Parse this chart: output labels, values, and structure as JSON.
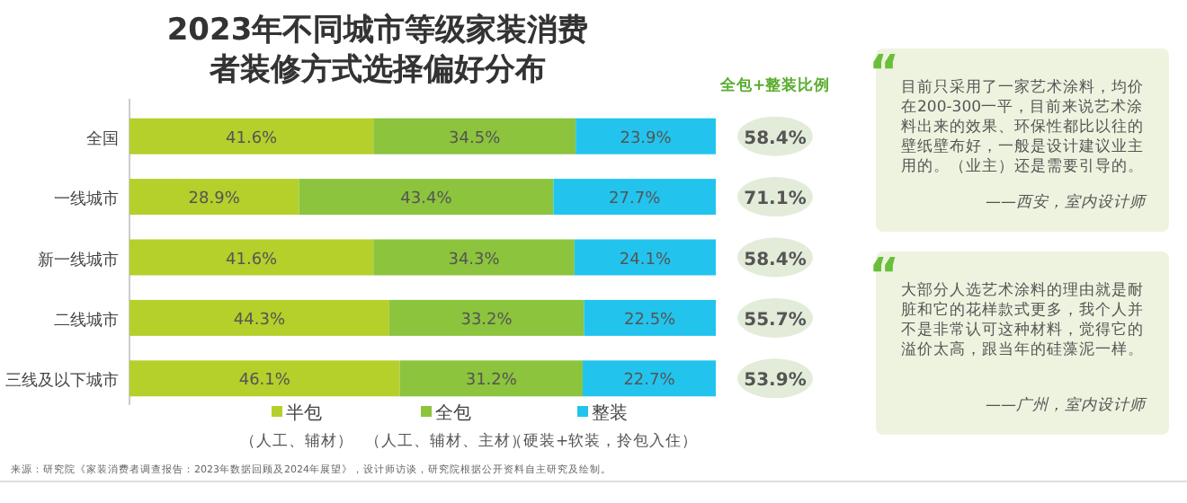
{
  "chart_data": [
    {
      "type": "bar",
      "orientation": "horizontal",
      "stacked": true,
      "legend": "bottom",
      "grid": false,
      "title": "2023年不同城市等级家装消费者装修方式选择偏好分布",
      "categories": [
        "全国",
        "一线城市",
        "新一线城市",
        "二线城市",
        "三线及以下城市"
      ],
      "series": [
        {
          "name": "半包",
          "color": "#b5cf2b",
          "values": [
            41.6,
            28.9,
            41.6,
            44.3,
            46.1
          ],
          "value_labels": [
            "41.6%",
            "28.9%",
            "41.6%",
            "44.3%",
            "46.1%"
          ]
        },
        {
          "name": "全包",
          "color": "#8cc43d",
          "values": [
            34.5,
            43.4,
            34.3,
            33.2,
            31.2
          ],
          "value_labels": [
            "34.5%",
            "43.4%",
            "34.3%",
            "33.2%",
            "31.2%"
          ]
        },
        {
          "name": "整装",
          "color": "#22c4ee",
          "values": [
            23.9,
            27.7,
            24.1,
            22.5,
            22.7
          ],
          "value_labels": [
            "23.9%",
            "27.7%",
            "24.1%",
            "22.5%",
            "22.7%"
          ]
        }
      ],
      "annotations": [
        "全包+整装比例",
        "58.4%",
        "71.1%",
        "58.4%",
        "55.7%",
        "53.9%",
        "（人工、辅材）",
        "（人工、辅材、主材）",
        "（硬装+软装，拎包入住）",
        "来源：研究院《家装消费者调查报告：2023年数据回顾及2024年展望》，设计师访谈，研究院根据公开资料自主研究及绘制。"
      ]
    },
    {
      "type": "other",
      "annotations": [
        "“",
        "目前只采用了一家艺术涂料，均价在200-300一平，目前来说艺术涂料出来的效果、环保性都比以往的壁纸壁布好，一般是设计建议业主用的。（业主）还是需要引导的。",
        "——西安，室内设计师",
        "“",
        "大部分人选艺术涂料的理由就是耐脏和它的花样款式更多，我个人并不是非常认可这种材料，觉得它的溢价太高，跟当年的硅藻泥一样。",
        "——广州，室内设计师"
      ]
    }
  ]
}
